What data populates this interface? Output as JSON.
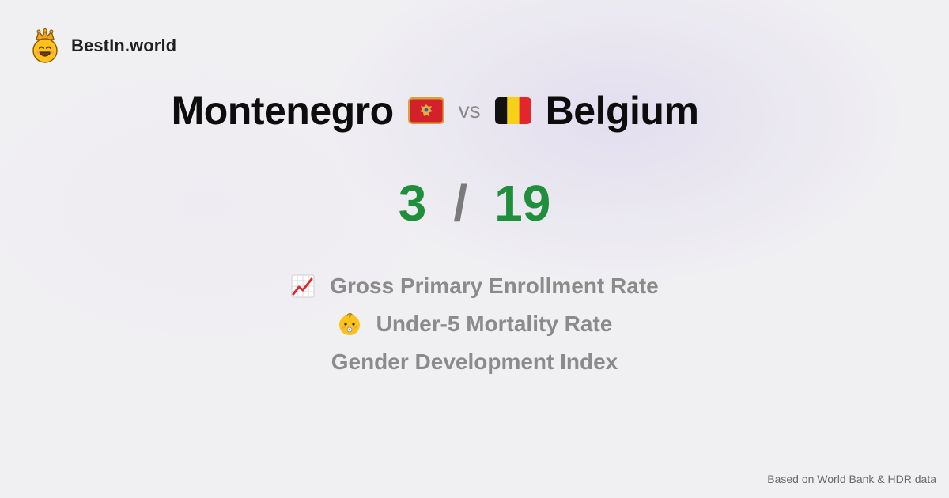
{
  "brand": {
    "name": "BestIn.world",
    "logo_icon": "crowned-smiley-icon"
  },
  "comparison": {
    "left_country": "Montenegro",
    "left_flag_icon": "montenegro-flag-icon",
    "vs_label": "vs",
    "right_country": "Belgium",
    "right_flag_icon": "belgium-flag-icon"
  },
  "score": {
    "left": "3",
    "separator": "/",
    "right": "19"
  },
  "metrics": [
    {
      "label": "Gross Primary Enrollment Rate",
      "icon": "chart-increasing-icon"
    },
    {
      "label": "Under-5 Mortality Rate",
      "icon": "baby-icon"
    },
    {
      "label": "Gender Development Index",
      "icon": ""
    }
  ],
  "footer": {
    "source_note": "Based on World Bank & HDR data"
  },
  "colors": {
    "score_green": "#1f8f3c",
    "muted_gray": "#8b8b8b",
    "background": "#f0eff2"
  }
}
